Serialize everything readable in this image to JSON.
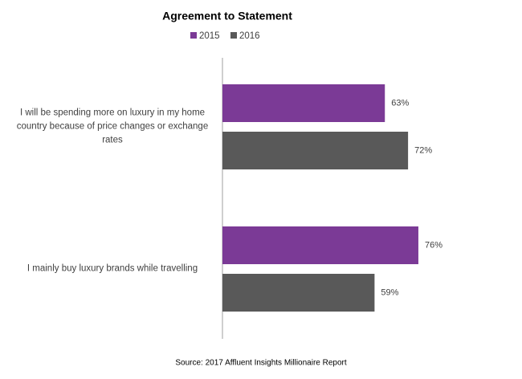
{
  "chart_data": {
    "type": "bar",
    "orientation": "horizontal",
    "title": "Agreement to Statement",
    "source": "Source: 2017 Affluent Insights Millionaire Report",
    "categories": [
      "I will be spending more on luxury in my home country because of price changes or exchange rates",
      "I mainly buy luxury brands while travelling"
    ],
    "series": [
      {
        "name": "2015",
        "color": "#7b3a96",
        "values": [
          63,
          76
        ],
        "value_labels": [
          "63%",
          "76%"
        ]
      },
      {
        "name": "2016",
        "color": "#595959",
        "values": [
          72,
          59
        ],
        "value_labels": [
          "72%",
          "59%"
        ]
      }
    ],
    "xlim": [
      0,
      100
    ],
    "legend": "top"
  }
}
